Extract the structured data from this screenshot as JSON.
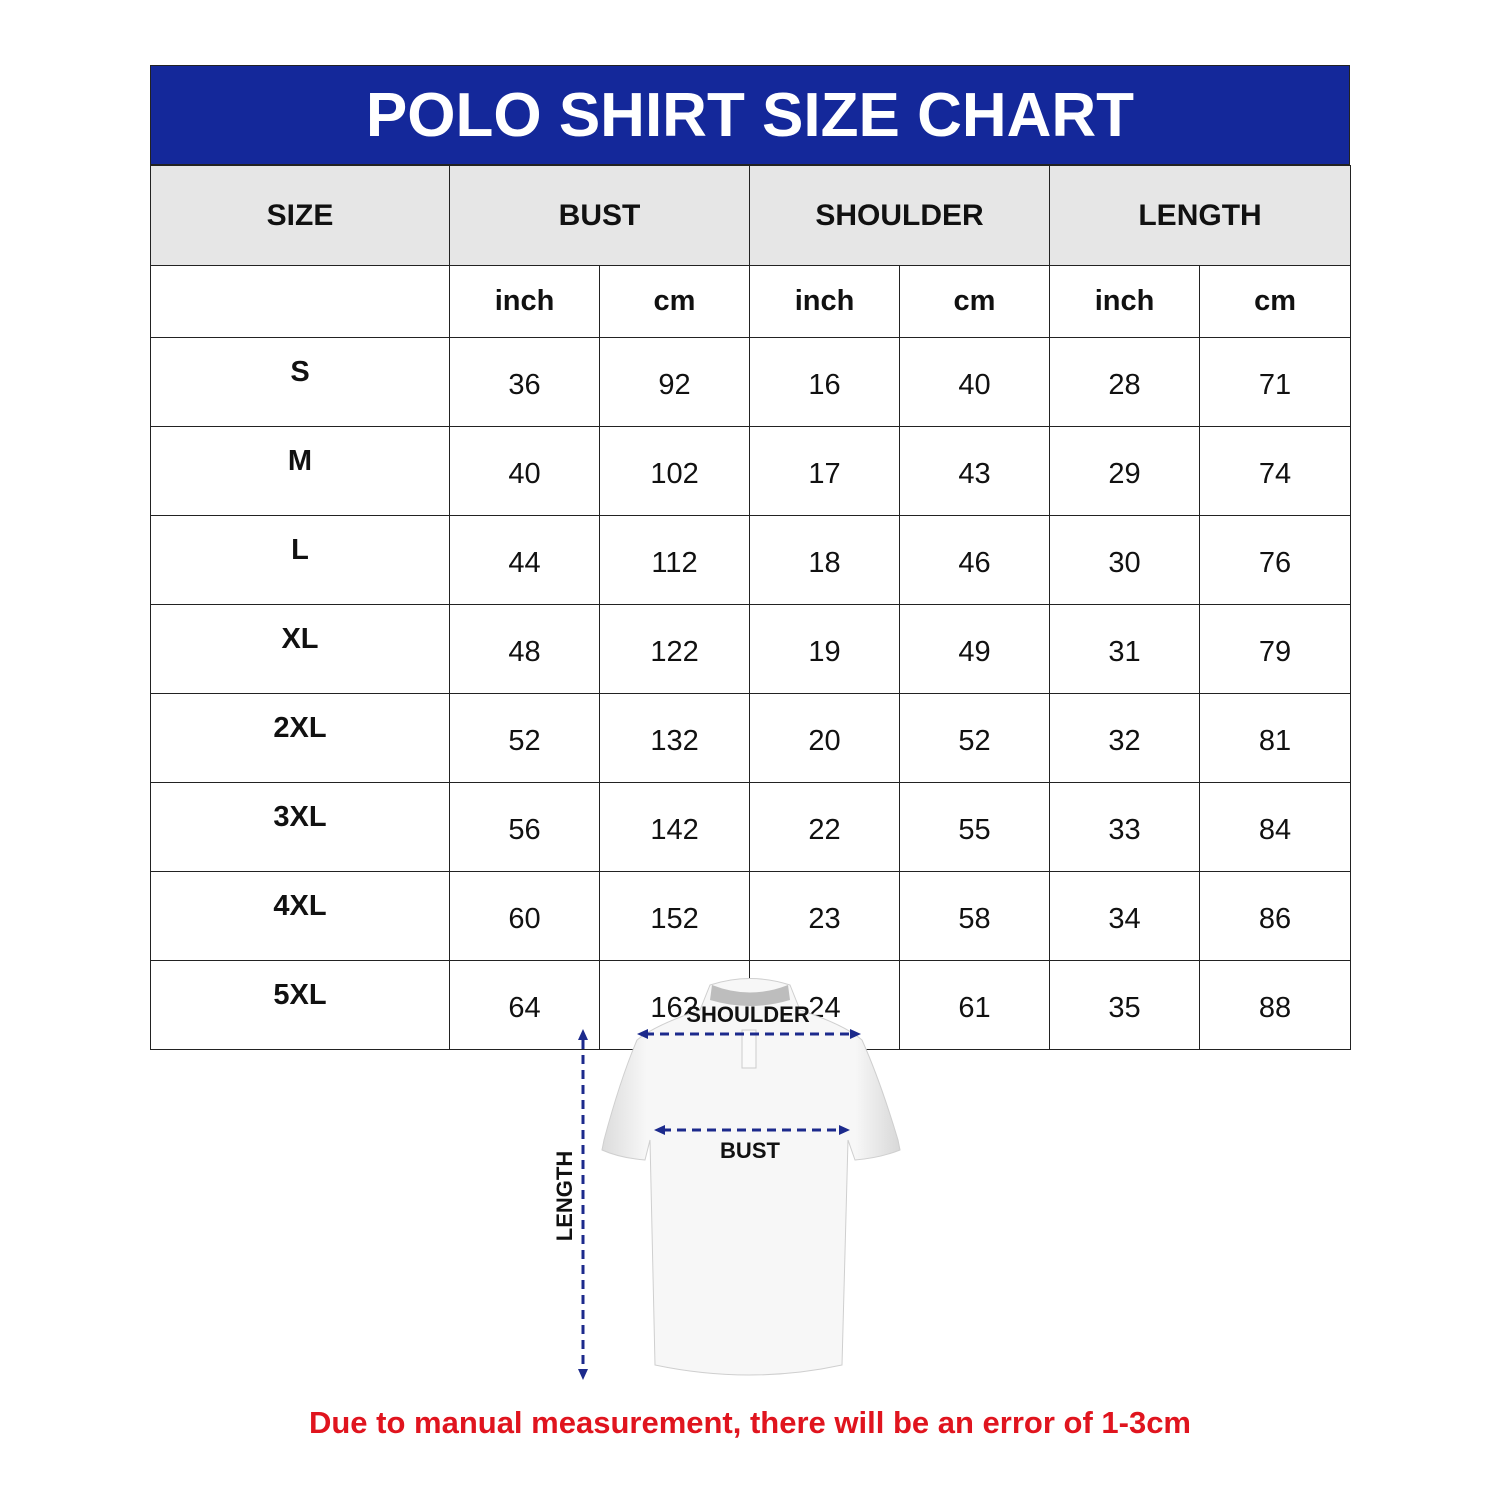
{
  "title": "POLO SHIRT SIZE CHART",
  "headers": [
    "SIZE",
    "BUST",
    "SHOULDER",
    "LENGTH"
  ],
  "units": [
    "inch",
    "cm",
    "inch",
    "cm",
    "inch",
    "cm"
  ],
  "rows": [
    {
      "size": "S",
      "values": [
        "36",
        "92",
        "16",
        "40",
        "28",
        "71"
      ]
    },
    {
      "size": "M",
      "values": [
        "40",
        "102",
        "17",
        "43",
        "29",
        "74"
      ]
    },
    {
      "size": "L",
      "values": [
        "44",
        "112",
        "18",
        "46",
        "30",
        "76"
      ]
    },
    {
      "size": "XL",
      "values": [
        "48",
        "122",
        "19",
        "49",
        "31",
        "79"
      ]
    },
    {
      "size": "2XL",
      "values": [
        "52",
        "132",
        "20",
        "52",
        "32",
        "81"
      ]
    },
    {
      "size": "3XL",
      "values": [
        "56",
        "142",
        "22",
        "55",
        "33",
        "84"
      ]
    },
    {
      "size": "4XL",
      "values": [
        "60",
        "152",
        "23",
        "58",
        "34",
        "86"
      ]
    },
    {
      "size": "5XL",
      "values": [
        "64",
        "162",
        "24",
        "61",
        "35",
        "88"
      ]
    }
  ],
  "diagram": {
    "shoulder": "SHOULDER",
    "bust": "BUST",
    "length": "LENGTH"
  },
  "note": "Due to manual measurement, there will be an error of 1-3cm",
  "colors": {
    "title_bg": "#14289a",
    "header_bg": "#e6e6e6",
    "note": "#e0141e",
    "arrows": "#1c2a8c"
  }
}
